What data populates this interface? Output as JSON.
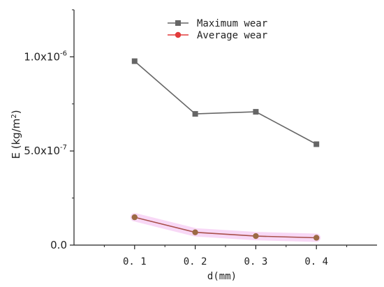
{
  "chart_data": {
    "type": "line",
    "xlabel": "d(mm)",
    "ylabel": "E (kg/m²)",
    "ylabel_base": "E (kg/m",
    "ylabel_sup": "2",
    "ylabel_close": ")",
    "x": [
      0.1,
      0.2,
      0.3,
      0.4
    ],
    "x_tick_labels": [
      "0. 1",
      "0. 2",
      "0. 3",
      "0. 4"
    ],
    "xlim": [
      0.0,
      0.5
    ],
    "ylim": [
      0.0,
      1.25e-06
    ],
    "y_ticks": [
      {
        "value": 0.0,
        "base": "0.0",
        "exp": ""
      },
      {
        "value": 5e-07,
        "base": "5.0x10",
        "exp": "-7"
      },
      {
        "value": 1e-06,
        "base": "1.0x10",
        "exp": "-6"
      }
    ],
    "grid": false,
    "legend_position": "top-center",
    "series": [
      {
        "name": "Maximum wear",
        "values": [
          9.77e-07,
          6.97e-07,
          7.08e-07,
          5.36e-07
        ],
        "color": "#666666",
        "marker": "square"
      },
      {
        "name": "Average wear",
        "values": [
          1.48e-07,
          6.8e-08,
          4.8e-08,
          3.9e-08
        ],
        "color": "#e23b3b",
        "marker": "circle",
        "marker_fill": "#9c6a44",
        "line_color": "#a8504a",
        "highlight_color": "#f3b8ee"
      }
    ]
  }
}
